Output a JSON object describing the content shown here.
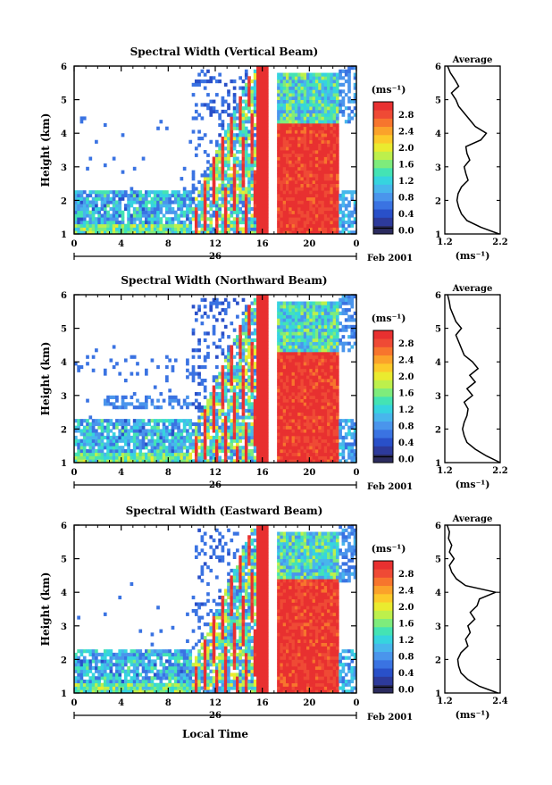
{
  "figure": {
    "date_label": "Feb 2001",
    "day_label": "26",
    "xlabel": "Local Time"
  },
  "colorbar": {
    "unit_label": "(ms⁻¹)",
    "ticks": [
      "0.0",
      "0.4",
      "0.8",
      "1.2",
      "1.6",
      "2.0",
      "2.4",
      "2.8"
    ],
    "levels": [
      "#2b2b5e",
      "#2d3a9b",
      "#2950c9",
      "#3a73e2",
      "#4a95ec",
      "#48b6ec",
      "#36d4df",
      "#44e3b4",
      "#7eec7c",
      "#bdf04c",
      "#eaeb2f",
      "#fcca2a",
      "#fba22a",
      "#f7752d",
      "#ef4a35",
      "#e83030"
    ]
  },
  "chart_data": [
    {
      "type": "heatmap",
      "title": "Spectral Width (Vertical Beam)",
      "ylabel": "Height (km)",
      "x_ticks": [
        "0",
        "4",
        "8",
        "12",
        "16",
        "20",
        "0"
      ],
      "y_ticks": [
        "1",
        "2",
        "3",
        "4",
        "5",
        "6"
      ],
      "xlim": [
        0,
        24
      ],
      "ylim": [
        1,
        6
      ],
      "value_unit": "ms⁻¹",
      "color_range": [
        0.0,
        2.8
      ],
      "average": {
        "title": "Average",
        "xlabel": "(ms⁻¹)",
        "x_ticks": [
          "1.2",
          "2.2"
        ],
        "xlim": [
          1.2,
          2.2
        ],
        "height_km": [
          1.0,
          1.2,
          1.4,
          1.6,
          1.8,
          2.0,
          2.2,
          2.4,
          2.6,
          2.8,
          3.0,
          3.2,
          3.4,
          3.6,
          3.8,
          4.0,
          4.2,
          4.4,
          4.6,
          4.8,
          5.0,
          5.2,
          5.4,
          5.6,
          5.8,
          6.0
        ],
        "values": [
          2.18,
          1.85,
          1.6,
          1.5,
          1.45,
          1.42,
          1.44,
          1.5,
          1.62,
          1.58,
          1.55,
          1.65,
          1.6,
          1.58,
          1.85,
          1.95,
          1.75,
          1.65,
          1.55,
          1.45,
          1.4,
          1.32,
          1.45,
          1.38,
          1.3,
          1.25
        ]
      }
    },
    {
      "type": "heatmap",
      "title": "Spectral Width (Northward Beam)",
      "ylabel": "Height (km)",
      "x_ticks": [
        "0",
        "4",
        "8",
        "12",
        "16",
        "20",
        "0"
      ],
      "y_ticks": [
        "1",
        "2",
        "3",
        "4",
        "5",
        "6"
      ],
      "xlim": [
        0,
        24
      ],
      "ylim": [
        1,
        6
      ],
      "value_unit": "ms⁻¹",
      "color_range": [
        0.0,
        2.8
      ],
      "average": {
        "title": "Average",
        "xlabel": "(ms⁻¹)",
        "x_ticks": [
          "1.2",
          "2.2"
        ],
        "xlim": [
          1.2,
          2.2
        ],
        "height_km": [
          1.0,
          1.2,
          1.4,
          1.6,
          1.8,
          2.0,
          2.2,
          2.4,
          2.6,
          2.8,
          3.0,
          3.2,
          3.4,
          3.6,
          3.8,
          4.0,
          4.2,
          4.4,
          4.6,
          4.8,
          5.0,
          5.2,
          5.4,
          5.6,
          5.8,
          6.0
        ],
        "values": [
          2.2,
          1.95,
          1.75,
          1.6,
          1.55,
          1.52,
          1.55,
          1.6,
          1.62,
          1.55,
          1.7,
          1.6,
          1.75,
          1.65,
          1.8,
          1.7,
          1.55,
          1.5,
          1.45,
          1.4,
          1.5,
          1.4,
          1.35,
          1.3,
          1.28,
          1.25
        ]
      }
    },
    {
      "type": "heatmap",
      "title": "Spectral Width (Eastward Beam)",
      "ylabel": "Height (km)",
      "x_ticks": [
        "0",
        "4",
        "8",
        "12",
        "16",
        "20",
        "0"
      ],
      "y_ticks": [
        "1",
        "2",
        "3",
        "4",
        "5",
        "6"
      ],
      "xlim": [
        0,
        24
      ],
      "ylim": [
        1,
        6
      ],
      "value_unit": "ms⁻¹",
      "color_range": [
        0.0,
        2.8
      ],
      "average": {
        "title": "Average",
        "xlabel": "(ms⁻¹)",
        "x_ticks": [
          "1.2",
          "2.4"
        ],
        "xlim": [
          1.2,
          2.4
        ],
        "height_km": [
          1.0,
          1.2,
          1.4,
          1.6,
          1.8,
          2.0,
          2.2,
          2.4,
          2.6,
          2.8,
          3.0,
          3.2,
          3.4,
          3.6,
          3.8,
          4.0,
          4.2,
          4.4,
          4.6,
          4.8,
          5.0,
          5.2,
          5.4,
          5.6,
          5.8,
          6.0
        ],
        "values": [
          2.35,
          1.95,
          1.7,
          1.55,
          1.5,
          1.48,
          1.55,
          1.7,
          1.65,
          1.75,
          1.7,
          1.85,
          1.75,
          1.9,
          1.95,
          2.3,
          1.65,
          1.45,
          1.35,
          1.3,
          1.4,
          1.3,
          1.35,
          1.28,
          1.3,
          1.25
        ]
      }
    }
  ]
}
